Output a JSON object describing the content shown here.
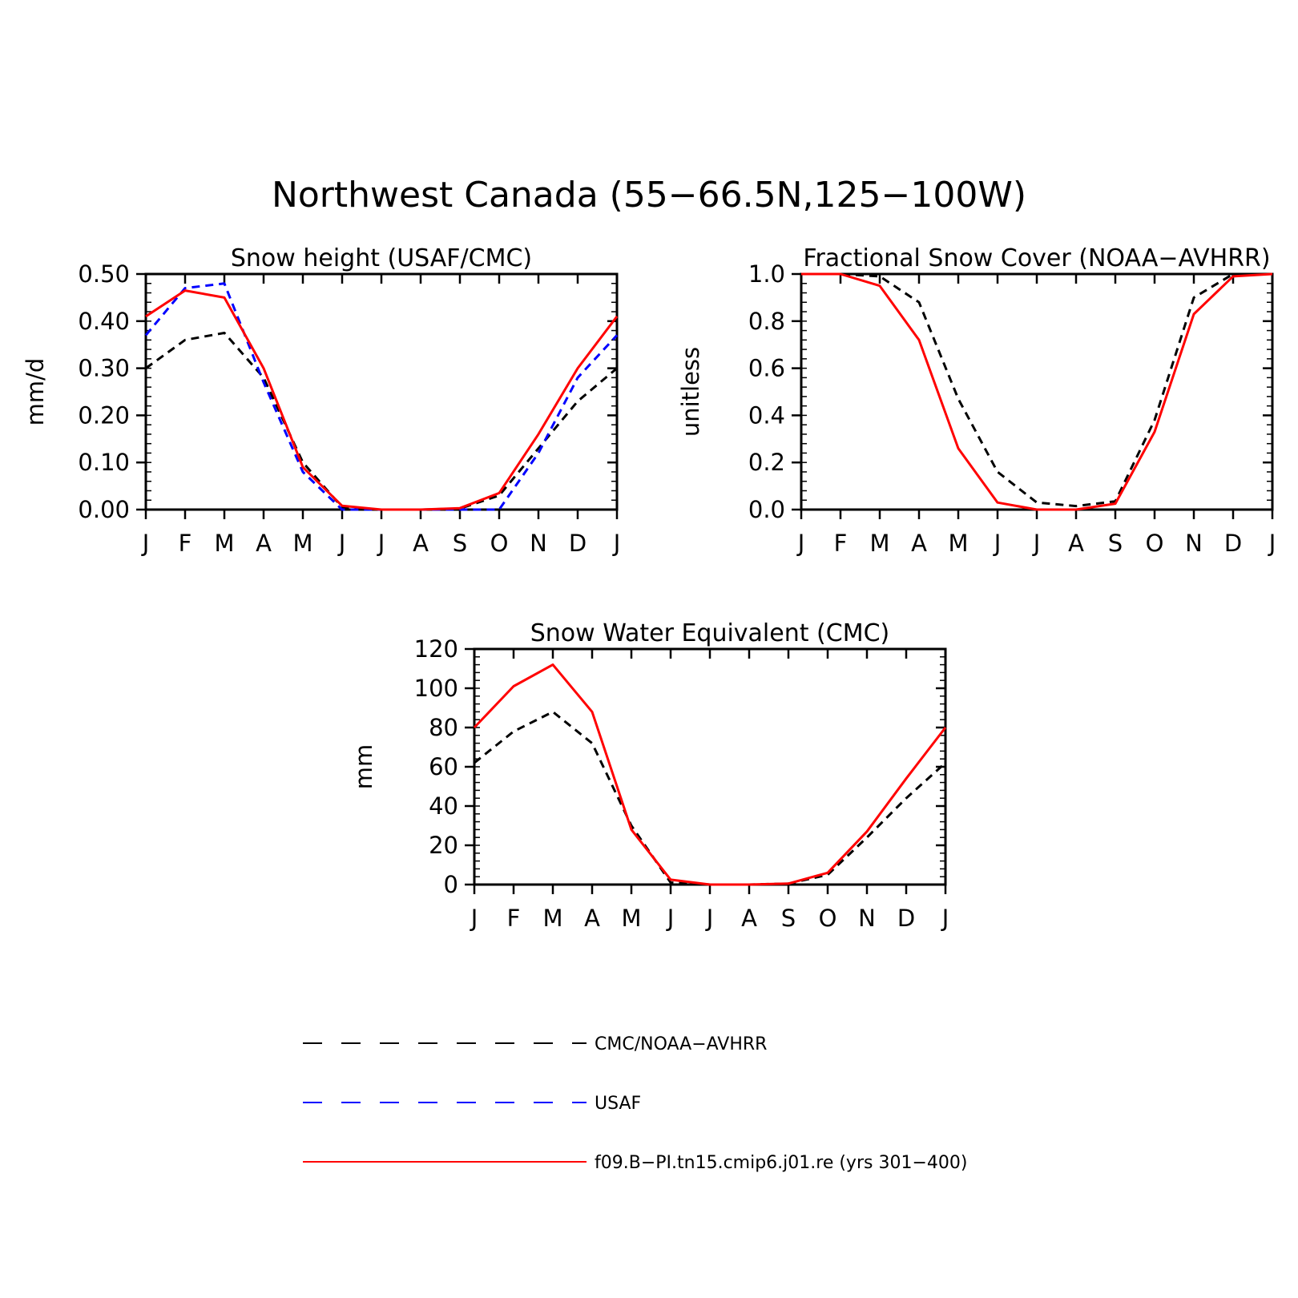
{
  "figure": {
    "title": "Northwest Canada (55−66.5N,125−100W)"
  },
  "legend": {
    "items": [
      {
        "label": "CMC/NOAA−AVHRR",
        "color": "#000000",
        "dash": "dashed"
      },
      {
        "label": "USAF",
        "color": "#0000ff",
        "dash": "dashed"
      },
      {
        "label": "f09.B−PI.tn15.cmip6.j01.re (yrs 301−400)",
        "color": "#ff0000",
        "dash": "solid"
      }
    ]
  },
  "chart_data": [
    {
      "type": "line",
      "title": "Snow height (USAF/CMC)",
      "xlabel": "",
      "ylabel": "mm/d",
      "categories": [
        "J",
        "F",
        "M",
        "A",
        "M",
        "J",
        "J",
        "A",
        "S",
        "O",
        "N",
        "D",
        "J"
      ],
      "ylim": [
        0,
        0.5
      ],
      "yticks": [
        0,
        0.1,
        0.2,
        0.3,
        0.4,
        0.5
      ],
      "ytick_labels": [
        "0.00",
        "0.10",
        "0.20",
        "0.30",
        "0.40",
        "0.50"
      ],
      "y_minor_step": 0.02,
      "grid": false,
      "series": [
        {
          "name": "CMC/NOAA−AVHRR",
          "color": "#000000",
          "dash": "dashed",
          "values": [
            0.3,
            0.36,
            0.375,
            0.28,
            0.1,
            0.005,
            0.0,
            0.0,
            0.002,
            0.03,
            0.13,
            0.23,
            0.3
          ]
        },
        {
          "name": "USAF",
          "color": "#0000ff",
          "dash": "dashed",
          "values": [
            0.37,
            0.47,
            0.48,
            0.27,
            0.08,
            0.0,
            0.0,
            0.0,
            0.0,
            0.0,
            0.12,
            0.28,
            0.37
          ]
        },
        {
          "name": "f09.B−PI.tn15.cmip6.j01.re (yrs 301−400)",
          "color": "#ff0000",
          "dash": "solid",
          "values": [
            0.41,
            0.465,
            0.45,
            0.3,
            0.09,
            0.008,
            0.0,
            0.0,
            0.003,
            0.035,
            0.16,
            0.3,
            0.41
          ]
        }
      ]
    },
    {
      "type": "line",
      "title": "Fractional Snow Cover (NOAA−AVHRR)",
      "xlabel": "",
      "ylabel": "unitless",
      "categories": [
        "J",
        "F",
        "M",
        "A",
        "M",
        "J",
        "J",
        "A",
        "S",
        "O",
        "N",
        "D",
        "J"
      ],
      "ylim": [
        0,
        1.0
      ],
      "yticks": [
        0,
        0.2,
        0.4,
        0.6,
        0.8,
        1.0
      ],
      "ytick_labels": [
        "0.0",
        "0.2",
        "0.4",
        "0.6",
        "0.8",
        "1.0"
      ],
      "y_minor_step": 0.04,
      "grid": false,
      "series": [
        {
          "name": "CMC/NOAA−AVHRR",
          "color": "#000000",
          "dash": "dashed",
          "values": [
            1.0,
            1.0,
            0.99,
            0.88,
            0.47,
            0.16,
            0.03,
            0.015,
            0.035,
            0.38,
            0.9,
            1.0,
            1.0
          ]
        },
        {
          "name": "f09.B−PI.tn15.cmip6.j01.re (yrs 301−400)",
          "color": "#ff0000",
          "dash": "solid",
          "values": [
            1.0,
            1.0,
            0.95,
            0.72,
            0.26,
            0.03,
            0.0,
            0.0,
            0.025,
            0.33,
            0.83,
            0.99,
            1.0
          ]
        }
      ]
    },
    {
      "type": "line",
      "title": "Snow Water Equivalent (CMC)",
      "xlabel": "",
      "ylabel": "mm",
      "categories": [
        "J",
        "F",
        "M",
        "A",
        "M",
        "J",
        "J",
        "A",
        "S",
        "O",
        "N",
        "D",
        "J"
      ],
      "ylim": [
        0,
        120
      ],
      "yticks": [
        0,
        20,
        40,
        60,
        80,
        100,
        120
      ],
      "ytick_labels": [
        "0",
        "20",
        "40",
        "60",
        "80",
        "100",
        "120"
      ],
      "y_minor_step": 4,
      "grid": false,
      "series": [
        {
          "name": "CMC/NOAA−AVHRR",
          "color": "#000000",
          "dash": "dashed",
          "values": [
            62,
            78,
            88,
            72,
            30,
            1,
            0,
            0,
            0.5,
            5,
            24,
            44,
            62
          ]
        },
        {
          "name": "f09.B−PI.tn15.cmip6.j01.re (yrs 301−400)",
          "color": "#ff0000",
          "dash": "solid",
          "values": [
            80,
            101,
            112,
            88,
            28,
            2.5,
            0,
            0,
            0.5,
            6,
            27,
            54,
            80
          ]
        }
      ]
    }
  ]
}
